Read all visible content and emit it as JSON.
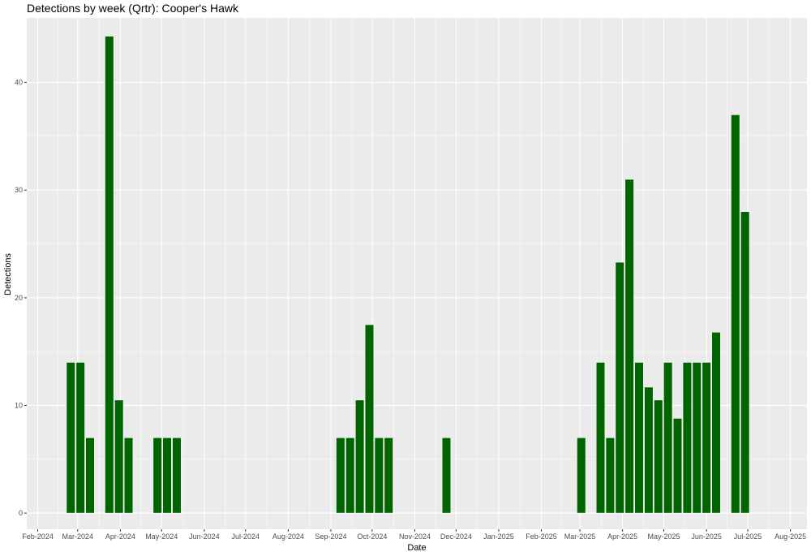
{
  "chart_data": {
    "type": "bar",
    "title": "Detections by week (Qrtr): Cooper's Hawk",
    "xlabel": "Date",
    "ylabel": "Detections",
    "ylim": [
      -1.5,
      46
    ],
    "y_ticks": [
      0,
      10,
      20,
      30,
      40
    ],
    "x_ticks": [
      {
        "date": "2024-02-01",
        "label": "Feb-2024"
      },
      {
        "date": "2024-03-01",
        "label": "Mar-2024"
      },
      {
        "date": "2024-04-01",
        "label": "Apr-2024"
      },
      {
        "date": "2024-05-01",
        "label": "May-2024"
      },
      {
        "date": "2024-06-01",
        "label": "Jun-2024"
      },
      {
        "date": "2024-07-01",
        "label": "Jul-2024"
      },
      {
        "date": "2024-08-01",
        "label": "Aug-2024"
      },
      {
        "date": "2024-09-01",
        "label": "Sep-2024"
      },
      {
        "date": "2024-10-01",
        "label": "Oct-2024"
      },
      {
        "date": "2024-11-01",
        "label": "Nov-2024"
      },
      {
        "date": "2024-12-01",
        "label": "Dec-2024"
      },
      {
        "date": "2025-01-01",
        "label": "Jan-2025"
      },
      {
        "date": "2025-02-01",
        "label": "Feb-2025"
      },
      {
        "date": "2025-03-01",
        "label": "Mar-2025"
      },
      {
        "date": "2025-04-01",
        "label": "Apr-2025"
      },
      {
        "date": "2025-05-01",
        "label": "May-2025"
      },
      {
        "date": "2025-06-01",
        "label": "Jun-2025"
      },
      {
        "date": "2025-07-01",
        "label": "Jul-2025"
      },
      {
        "date": "2025-08-01",
        "label": "Aug-2025"
      }
    ],
    "xlim": [
      "2024-01-24",
      "2025-08-13"
    ],
    "bar_width_days": 6.3,
    "grid": true,
    "bar_color": "#006400",
    "panel_color": "#ebebeb",
    "grid_color": "#ffffff",
    "series": [
      {
        "x": [
          "2024-02-25",
          "2024-03-03",
          "2024-03-10",
          "2024-03-24",
          "2024-03-31",
          "2024-04-07",
          "2024-04-28",
          "2024-05-05",
          "2024-05-12",
          "2024-09-08",
          "2024-09-15",
          "2024-09-22",
          "2024-09-29",
          "2024-10-06",
          "2024-10-13",
          "2024-11-24",
          "2025-03-02",
          "2025-03-16",
          "2025-03-23",
          "2025-03-30",
          "2025-04-06",
          "2025-04-13",
          "2025-04-20",
          "2025-04-27",
          "2025-05-04",
          "2025-05-11",
          "2025-05-18",
          "2025-05-25",
          "2025-06-01",
          "2025-06-08",
          "2025-06-22",
          "2025-06-29"
        ],
        "values": [
          14,
          14,
          7,
          44.3,
          10.5,
          7,
          7,
          7,
          7,
          7,
          7,
          10.5,
          17.5,
          7,
          7,
          7,
          7,
          14,
          7,
          23.3,
          31,
          14,
          11.7,
          10.5,
          14,
          8.8,
          14,
          14,
          14,
          16.8,
          37,
          28
        ]
      }
    ]
  }
}
